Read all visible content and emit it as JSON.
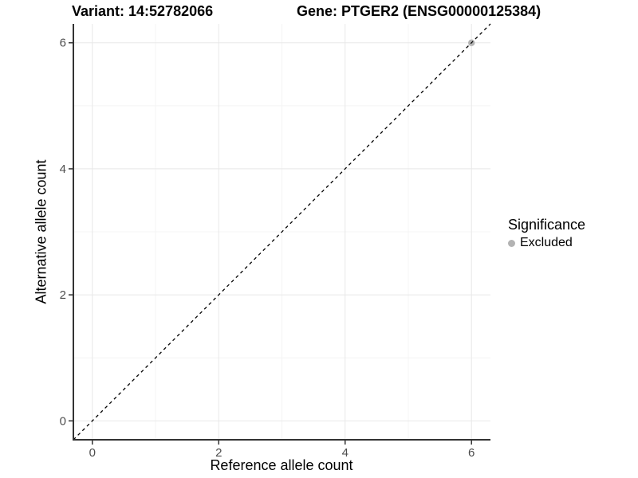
{
  "chart_data": {
    "type": "scatter",
    "titles": {
      "variant": "Variant: 14:52782066",
      "gene": "Gene: PTGER2 (ENSG00000125384)"
    },
    "xlabel": "Reference allele count",
    "ylabel": "Alternative allele count",
    "xlim": [
      -0.3,
      6.3
    ],
    "ylim": [
      -0.3,
      6.3
    ],
    "x_major_ticks": [
      0,
      2,
      4,
      6
    ],
    "y_major_ticks": [
      0,
      2,
      4,
      6
    ],
    "x_minor_gridlines": [
      1,
      3,
      5
    ],
    "y_minor_gridlines": [
      1,
      3,
      5
    ],
    "grid": "major and minor, light gray on white panel",
    "reference_line": {
      "description": "identity line y = x",
      "style": "dashed",
      "color": "#000000",
      "x1": -0.3,
      "y1": -0.3,
      "x2": 6.3,
      "y2": 6.3
    },
    "series": [
      {
        "name": "Excluded",
        "color": "#b3b3b3",
        "marker": "circle",
        "points": [
          {
            "x": 6,
            "y": 6
          }
        ]
      }
    ],
    "legend": {
      "title": "Significance",
      "position": "right",
      "items": [
        {
          "label": "Excluded",
          "color": "#b3b3b3",
          "marker": "circle"
        }
      ]
    }
  },
  "colors": {
    "background": "#ffffff",
    "axis_line": "#333333",
    "tick_mark": "#333333",
    "major_grid": "#e8e8e8",
    "minor_grid": "#f4f4f4",
    "tick_label": "#4d4d4d",
    "title_text": "#000000",
    "point": "#b3b3b3"
  }
}
